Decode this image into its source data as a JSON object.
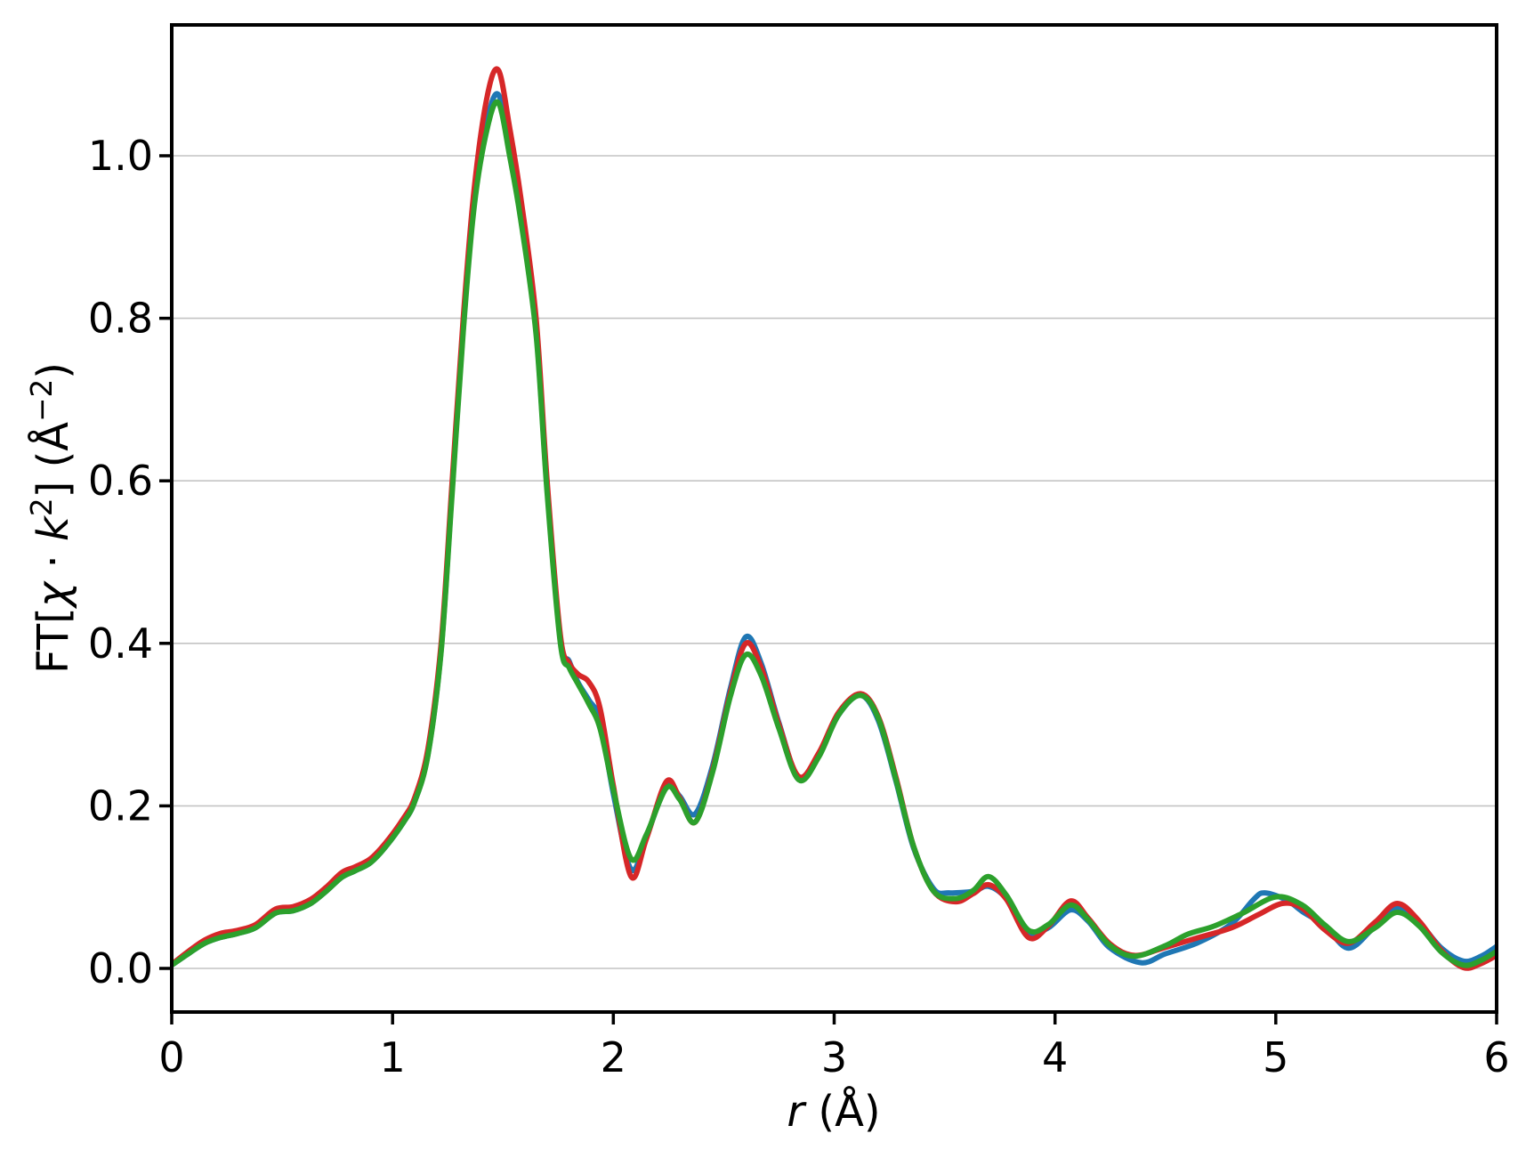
{
  "figure": {
    "background": "#ffffff",
    "axes": {
      "xlabel": {
        "var": "r",
        "unit": " (Å)"
      },
      "ylabel": {
        "p0": "FT[",
        "chi": "χ",
        "dot": " · ",
        "k": "k",
        "ksup": "2",
        "p1": "] (Å",
        "sup": "−2",
        "p2": ")"
      },
      "xtick_labels": [
        "0",
        "1",
        "2",
        "3",
        "4",
        "5",
        "6"
      ],
      "ytick_labels": [
        "0.0",
        "0.2",
        "0.4",
        "0.6",
        "0.8",
        "1.0"
      ],
      "spine_color": "#000000",
      "grid_color": "#c4c4c4"
    }
  },
  "chart_data": {
    "type": "line",
    "title": "",
    "xlabel": "r (Å)",
    "ylabel": "FT[χ·k²] (Å⁻²)",
    "xlim": [
      0,
      6
    ],
    "ylim": [
      -0.054,
      1.161
    ],
    "xticks": [
      0,
      1,
      2,
      3,
      4,
      5,
      6
    ],
    "yticks": [
      0.0,
      0.2,
      0.4,
      0.6,
      0.8,
      1.0
    ],
    "grid": "horizontal",
    "legend": "none",
    "series": [
      {
        "name": "blue",
        "color": "#1f77b4",
        "points": [
          [
            0.0,
            0.004
          ],
          [
            0.08,
            0.019
          ],
          [
            0.15,
            0.031
          ],
          [
            0.22,
            0.038
          ],
          [
            0.3,
            0.043
          ],
          [
            0.38,
            0.05
          ],
          [
            0.47,
            0.068
          ],
          [
            0.55,
            0.071
          ],
          [
            0.63,
            0.08
          ],
          [
            0.7,
            0.095
          ],
          [
            0.77,
            0.112
          ],
          [
            0.83,
            0.12
          ],
          [
            0.9,
            0.13
          ],
          [
            0.97,
            0.15
          ],
          [
            1.05,
            0.18
          ],
          [
            1.1,
            0.205
          ],
          [
            1.16,
            0.263
          ],
          [
            1.22,
            0.392
          ],
          [
            1.27,
            0.59
          ],
          [
            1.32,
            0.788
          ],
          [
            1.37,
            0.945
          ],
          [
            1.43,
            1.045
          ],
          [
            1.48,
            1.075
          ],
          [
            1.53,
            1.01
          ],
          [
            1.58,
            0.93
          ],
          [
            1.65,
            0.785
          ],
          [
            1.7,
            0.59
          ],
          [
            1.76,
            0.405
          ],
          [
            1.8,
            0.378
          ],
          [
            1.84,
            0.352
          ],
          [
            1.89,
            0.33
          ],
          [
            1.94,
            0.305
          ],
          [
            2.0,
            0.215
          ],
          [
            2.08,
            0.122
          ],
          [
            2.15,
            0.162
          ],
          [
            2.24,
            0.226
          ],
          [
            2.3,
            0.212
          ],
          [
            2.37,
            0.19
          ],
          [
            2.45,
            0.25
          ],
          [
            2.53,
            0.345
          ],
          [
            2.6,
            0.408
          ],
          [
            2.67,
            0.375
          ],
          [
            2.75,
            0.302
          ],
          [
            2.84,
            0.234
          ],
          [
            2.93,
            0.262
          ],
          [
            3.02,
            0.312
          ],
          [
            3.12,
            0.336
          ],
          [
            3.2,
            0.305
          ],
          [
            3.28,
            0.23
          ],
          [
            3.36,
            0.148
          ],
          [
            3.45,
            0.098
          ],
          [
            3.52,
            0.093
          ],
          [
            3.63,
            0.095
          ],
          [
            3.7,
            0.101
          ],
          [
            3.78,
            0.086
          ],
          [
            3.88,
            0.045
          ],
          [
            3.97,
            0.05
          ],
          [
            4.07,
            0.072
          ],
          [
            4.15,
            0.058
          ],
          [
            4.25,
            0.025
          ],
          [
            4.39,
            0.007
          ],
          [
            4.5,
            0.018
          ],
          [
            4.65,
            0.032
          ],
          [
            4.8,
            0.055
          ],
          [
            4.9,
            0.085
          ],
          [
            4.95,
            0.093
          ],
          [
            5.05,
            0.084
          ],
          [
            5.12,
            0.07
          ],
          [
            5.22,
            0.053
          ],
          [
            5.33,
            0.025
          ],
          [
            5.45,
            0.052
          ],
          [
            5.55,
            0.074
          ],
          [
            5.65,
            0.056
          ],
          [
            5.75,
            0.025
          ],
          [
            5.85,
            0.009
          ],
          [
            5.93,
            0.015
          ],
          [
            6.0,
            0.027
          ]
        ]
      },
      {
        "name": "red",
        "color": "#d62728",
        "points": [
          [
            0.0,
            0.005
          ],
          [
            0.08,
            0.022
          ],
          [
            0.15,
            0.035
          ],
          [
            0.22,
            0.043
          ],
          [
            0.3,
            0.047
          ],
          [
            0.38,
            0.054
          ],
          [
            0.47,
            0.073
          ],
          [
            0.55,
            0.076
          ],
          [
            0.63,
            0.085
          ],
          [
            0.7,
            0.1
          ],
          [
            0.77,
            0.118
          ],
          [
            0.83,
            0.125
          ],
          [
            0.9,
            0.135
          ],
          [
            0.97,
            0.155
          ],
          [
            1.05,
            0.185
          ],
          [
            1.1,
            0.21
          ],
          [
            1.16,
            0.27
          ],
          [
            1.22,
            0.4
          ],
          [
            1.27,
            0.6
          ],
          [
            1.32,
            0.8
          ],
          [
            1.37,
            0.96
          ],
          [
            1.43,
            1.075
          ],
          [
            1.48,
            1.105
          ],
          [
            1.53,
            1.035
          ],
          [
            1.58,
            0.95
          ],
          [
            1.65,
            0.8
          ],
          [
            1.7,
            0.6
          ],
          [
            1.76,
            0.41
          ],
          [
            1.8,
            0.376
          ],
          [
            1.84,
            0.362
          ],
          [
            1.89,
            0.352
          ],
          [
            1.94,
            0.32
          ],
          [
            2.0,
            0.225
          ],
          [
            2.08,
            0.113
          ],
          [
            2.15,
            0.16
          ],
          [
            2.24,
            0.23
          ],
          [
            2.3,
            0.21
          ],
          [
            2.37,
            0.18
          ],
          [
            2.45,
            0.245
          ],
          [
            2.53,
            0.34
          ],
          [
            2.6,
            0.4
          ],
          [
            2.67,
            0.37
          ],
          [
            2.75,
            0.3
          ],
          [
            2.84,
            0.236
          ],
          [
            2.93,
            0.265
          ],
          [
            3.02,
            0.315
          ],
          [
            3.12,
            0.338
          ],
          [
            3.2,
            0.31
          ],
          [
            3.28,
            0.235
          ],
          [
            3.36,
            0.15
          ],
          [
            3.45,
            0.095
          ],
          [
            3.55,
            0.082
          ],
          [
            3.63,
            0.092
          ],
          [
            3.7,
            0.103
          ],
          [
            3.78,
            0.085
          ],
          [
            3.88,
            0.038
          ],
          [
            3.97,
            0.052
          ],
          [
            4.07,
            0.083
          ],
          [
            4.15,
            0.062
          ],
          [
            4.25,
            0.03
          ],
          [
            4.36,
            0.016
          ],
          [
            4.5,
            0.026
          ],
          [
            4.65,
            0.038
          ],
          [
            4.8,
            0.05
          ],
          [
            4.92,
            0.066
          ],
          [
            5.03,
            0.08
          ],
          [
            5.12,
            0.074
          ],
          [
            5.22,
            0.048
          ],
          [
            5.33,
            0.031
          ],
          [
            5.45,
            0.057
          ],
          [
            5.55,
            0.08
          ],
          [
            5.65,
            0.058
          ],
          [
            5.75,
            0.022
          ],
          [
            5.85,
            0.001
          ],
          [
            5.93,
            0.006
          ],
          [
            6.0,
            0.016
          ]
        ]
      },
      {
        "name": "green",
        "color": "#2ca02c",
        "points": [
          [
            0.0,
            0.004
          ],
          [
            0.08,
            0.019
          ],
          [
            0.15,
            0.031
          ],
          [
            0.22,
            0.038
          ],
          [
            0.3,
            0.043
          ],
          [
            0.38,
            0.05
          ],
          [
            0.47,
            0.068
          ],
          [
            0.55,
            0.071
          ],
          [
            0.63,
            0.08
          ],
          [
            0.7,
            0.095
          ],
          [
            0.77,
            0.112
          ],
          [
            0.83,
            0.12
          ],
          [
            0.9,
            0.13
          ],
          [
            0.97,
            0.15
          ],
          [
            1.05,
            0.18
          ],
          [
            1.1,
            0.205
          ],
          [
            1.16,
            0.262
          ],
          [
            1.22,
            0.39
          ],
          [
            1.27,
            0.585
          ],
          [
            1.32,
            0.783
          ],
          [
            1.37,
            0.938
          ],
          [
            1.43,
            1.035
          ],
          [
            1.48,
            1.065
          ],
          [
            1.53,
            1.0
          ],
          [
            1.58,
            0.922
          ],
          [
            1.65,
            0.78
          ],
          [
            1.7,
            0.585
          ],
          [
            1.76,
            0.4
          ],
          [
            1.8,
            0.37
          ],
          [
            1.84,
            0.35
          ],
          [
            1.89,
            0.325
          ],
          [
            1.94,
            0.295
          ],
          [
            2.0,
            0.22
          ],
          [
            2.08,
            0.135
          ],
          [
            2.15,
            0.165
          ],
          [
            2.24,
            0.222
          ],
          [
            2.3,
            0.208
          ],
          [
            2.37,
            0.18
          ],
          [
            2.45,
            0.242
          ],
          [
            2.53,
            0.335
          ],
          [
            2.6,
            0.386
          ],
          [
            2.67,
            0.36
          ],
          [
            2.75,
            0.295
          ],
          [
            2.84,
            0.232
          ],
          [
            2.93,
            0.26
          ],
          [
            3.02,
            0.312
          ],
          [
            3.12,
            0.336
          ],
          [
            3.2,
            0.308
          ],
          [
            3.28,
            0.232
          ],
          [
            3.36,
            0.15
          ],
          [
            3.45,
            0.095
          ],
          [
            3.55,
            0.086
          ],
          [
            3.63,
            0.096
          ],
          [
            3.7,
            0.113
          ],
          [
            3.78,
            0.09
          ],
          [
            3.88,
            0.047
          ],
          [
            3.97,
            0.054
          ],
          [
            4.07,
            0.078
          ],
          [
            4.15,
            0.06
          ],
          [
            4.25,
            0.028
          ],
          [
            4.36,
            0.015
          ],
          [
            4.5,
            0.028
          ],
          [
            4.6,
            0.042
          ],
          [
            4.72,
            0.052
          ],
          [
            4.85,
            0.068
          ],
          [
            5.0,
            0.088
          ],
          [
            5.12,
            0.078
          ],
          [
            5.22,
            0.054
          ],
          [
            5.33,
            0.033
          ],
          [
            5.45,
            0.05
          ],
          [
            5.55,
            0.069
          ],
          [
            5.65,
            0.052
          ],
          [
            5.75,
            0.02
          ],
          [
            5.85,
            0.004
          ],
          [
            5.93,
            0.01
          ],
          [
            6.0,
            0.021
          ]
        ]
      }
    ]
  }
}
